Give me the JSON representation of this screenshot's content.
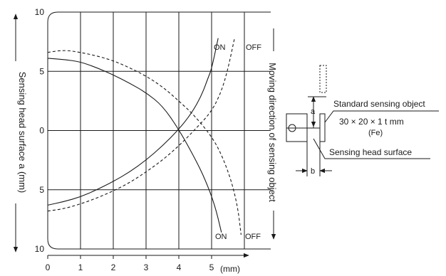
{
  "chart_data": {
    "type": "line",
    "title": "",
    "xlabel": "(mm)",
    "ylabel": "Sensing head surface  a (mm)",
    "right_label": "Moving direction of sensing object",
    "x_ticks": [
      "0",
      "1",
      "2",
      "3",
      "4",
      "5"
    ],
    "xlim": [
      0,
      6.2
    ],
    "y_ticks": [
      "10",
      "5",
      "0",
      "5",
      "10"
    ],
    "y_tick_values": [
      10,
      5,
      0,
      -5,
      -10
    ],
    "ylim": [
      -10,
      10
    ],
    "grid": true,
    "series": [
      {
        "name": "ON",
        "style": "solid",
        "label_top": "ON",
        "label_bottom": "ON",
        "upper": [
          [
            0,
            6.1
          ],
          [
            0.5,
            6.0
          ],
          [
            1,
            5.8
          ],
          [
            1.5,
            5.3
          ],
          [
            2,
            4.7
          ],
          [
            2.5,
            4.0
          ],
          [
            3,
            3.2
          ],
          [
            3.5,
            2.1
          ],
          [
            4,
            0.1
          ],
          [
            4.5,
            -2.4
          ],
          [
            4.8,
            -4.1
          ],
          [
            5.1,
            -6.3
          ],
          [
            5.3,
            -8.6
          ]
        ],
        "lower": [
          [
            0,
            -6.3
          ],
          [
            0.5,
            -6.0
          ],
          [
            1,
            -5.6
          ],
          [
            1.5,
            -5.0
          ],
          [
            2,
            -4.3
          ],
          [
            2.5,
            -3.5
          ],
          [
            3,
            -2.5
          ],
          [
            3.5,
            -1.3
          ],
          [
            4,
            0.1
          ],
          [
            4.4,
            1.5
          ],
          [
            4.7,
            3.0
          ],
          [
            4.9,
            4.5
          ],
          [
            5.0,
            5.2
          ],
          [
            5.2,
            7.8
          ]
        ]
      },
      {
        "name": "OFF",
        "style": "dashed",
        "label_top": "OFF",
        "label_bottom": "OFF",
        "upper": [
          [
            0,
            6.6
          ],
          [
            0.5,
            6.8
          ],
          [
            1,
            6.6
          ],
          [
            1.5,
            6.3
          ],
          [
            2,
            5.9
          ],
          [
            2.5,
            5.3
          ],
          [
            3,
            4.6
          ],
          [
            3.5,
            3.7
          ],
          [
            4,
            2.5
          ],
          [
            4.5,
            1.2
          ],
          [
            5,
            -0.5
          ],
          [
            5.3,
            -2.0
          ],
          [
            5.6,
            -4.2
          ],
          [
            5.8,
            -6.5
          ],
          [
            5.9,
            -8.8
          ]
        ],
        "lower": [
          [
            0,
            -6.8
          ],
          [
            0.5,
            -6.6
          ],
          [
            1,
            -6.2
          ],
          [
            1.5,
            -5.7
          ],
          [
            2,
            -5.1
          ],
          [
            2.5,
            -4.4
          ],
          [
            3,
            -3.5
          ],
          [
            3.5,
            -2.5
          ],
          [
            4,
            -1.3
          ],
          [
            4.5,
            0.1
          ],
          [
            5,
            1.6
          ],
          [
            5.3,
            3.3
          ],
          [
            5.5,
            5.2
          ],
          [
            5.7,
            7.8
          ]
        ]
      }
    ],
    "inset": {
      "standard_object_label": "Standard sensing object",
      "object_spec": "30 × 20 × 1 t mm",
      "material": "(Fe)",
      "head_surface_label": "Sensing head surface",
      "dim_a": "a",
      "dim_b": "b"
    }
  }
}
